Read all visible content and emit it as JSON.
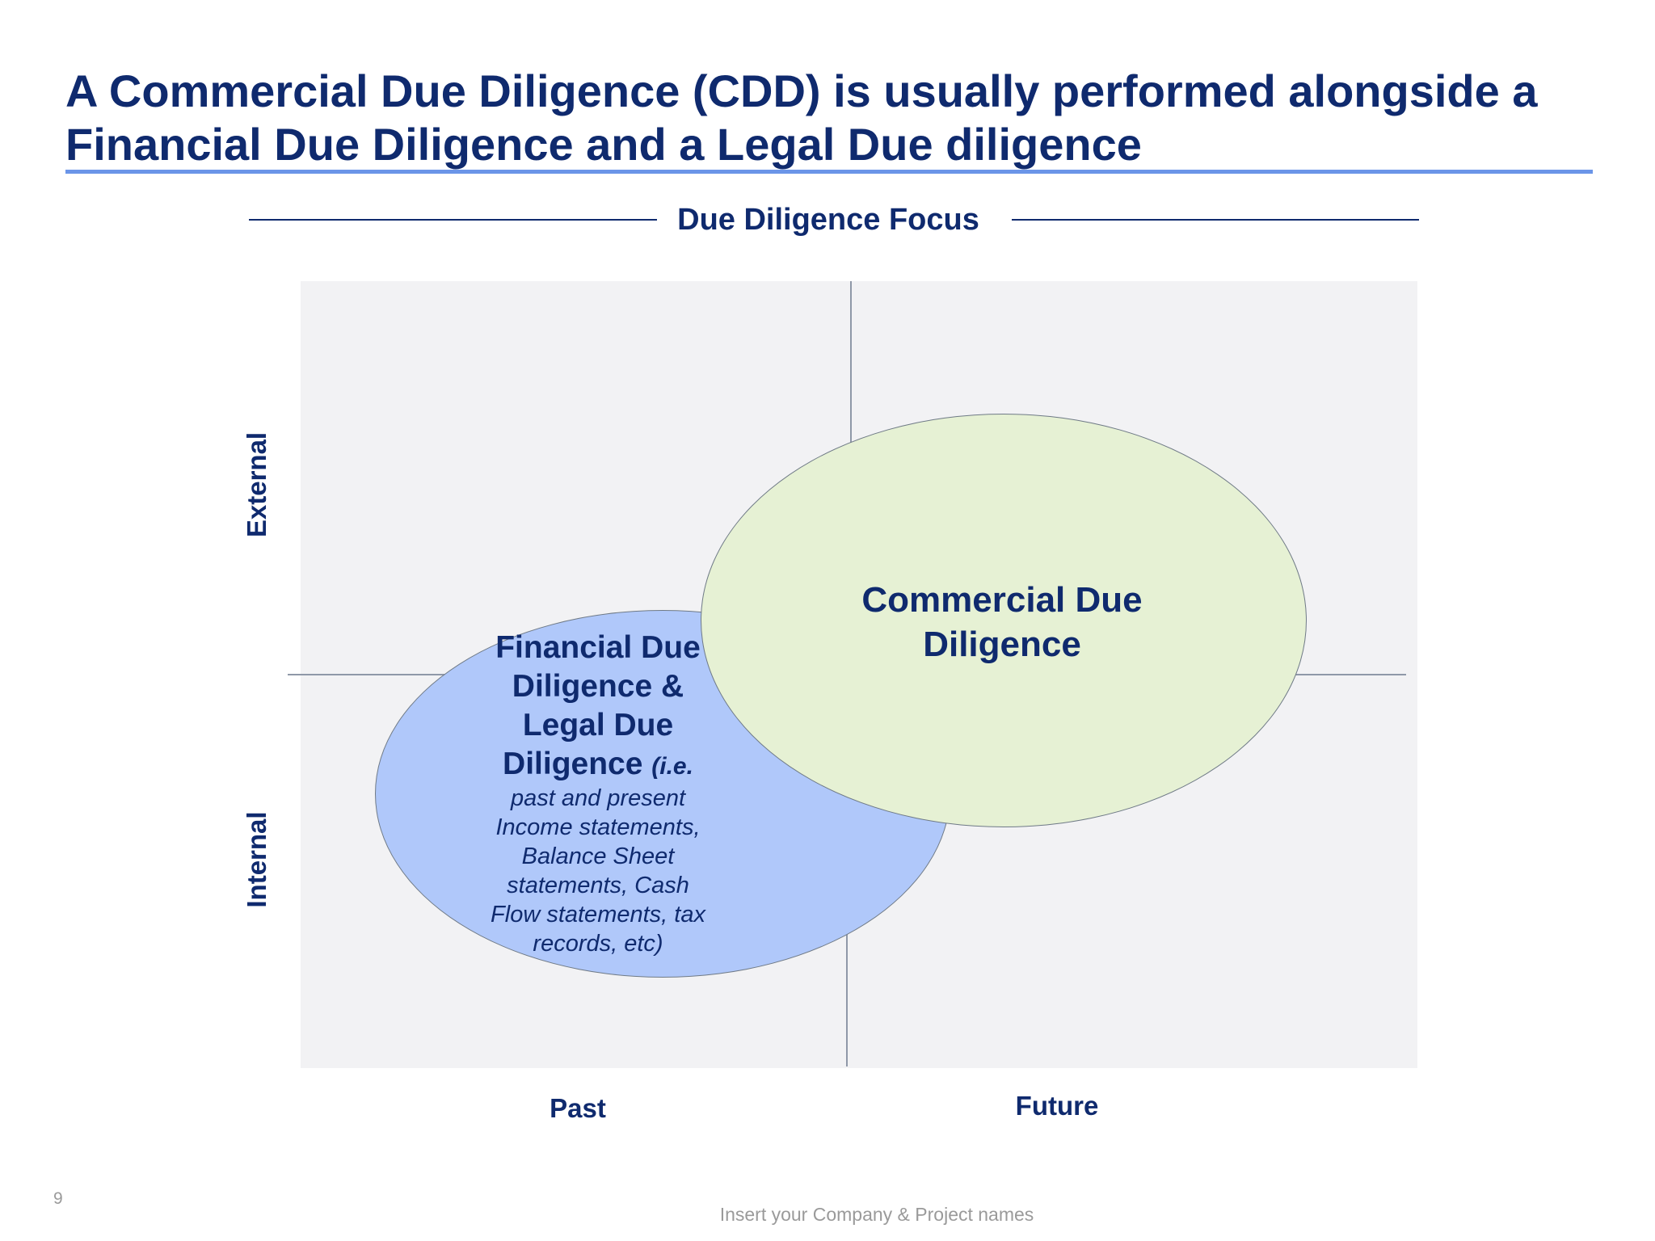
{
  "slide": {
    "title": "A Commercial Due Diligence (CDD) is usually performed alongside a\nFinancial Due Diligence and a Legal Due diligence",
    "section_label": "Due Diligence Focus",
    "page_number": "9",
    "footer": "Insert your Company & Project names"
  },
  "matrix": {
    "y_axis": {
      "top": "External",
      "bottom": "Internal"
    },
    "x_axis": {
      "left": "Past",
      "right": "Future"
    },
    "commercial": {
      "label": "Commercial Due\nDiligence"
    },
    "financial_legal": {
      "label": "Financial Due\nDiligence &\nLegal Due\nDiligence",
      "inline_note": "(i.e.",
      "detail": "past and present\nIncome statements,\nBalance Sheet\nstatements, Cash\nFlow statements, tax\nrecords, etc)"
    }
  },
  "colors": {
    "title": "#0f2a6e",
    "accent_rule": "#6b95e8",
    "plot_bg": "#f2f2f4",
    "financial_fill": "#b0c8fa",
    "commercial_fill": "#e6f1d4"
  }
}
